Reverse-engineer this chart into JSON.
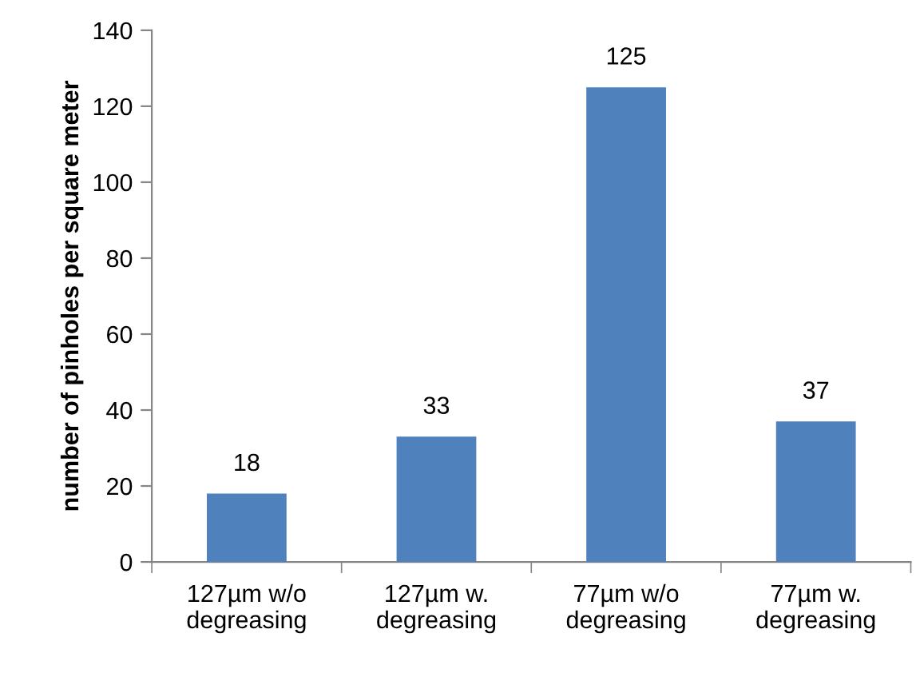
{
  "chart_data": {
    "type": "bar",
    "ylabel": "number of pinholes per square meter",
    "categories": [
      "127µm w/o\ndegreasing",
      "127µm w.\ndegreasing",
      "77µm w/o\ndegreasing",
      "77µm w.\ndegreasing"
    ],
    "values": [
      18,
      33,
      125,
      37
    ],
    "color": "#4f81bd",
    "ylim": [
      0,
      140
    ],
    "yticks": [
      0,
      20,
      40,
      60,
      80,
      100,
      120,
      140
    ],
    "data_labels": true,
    "grid": false
  }
}
